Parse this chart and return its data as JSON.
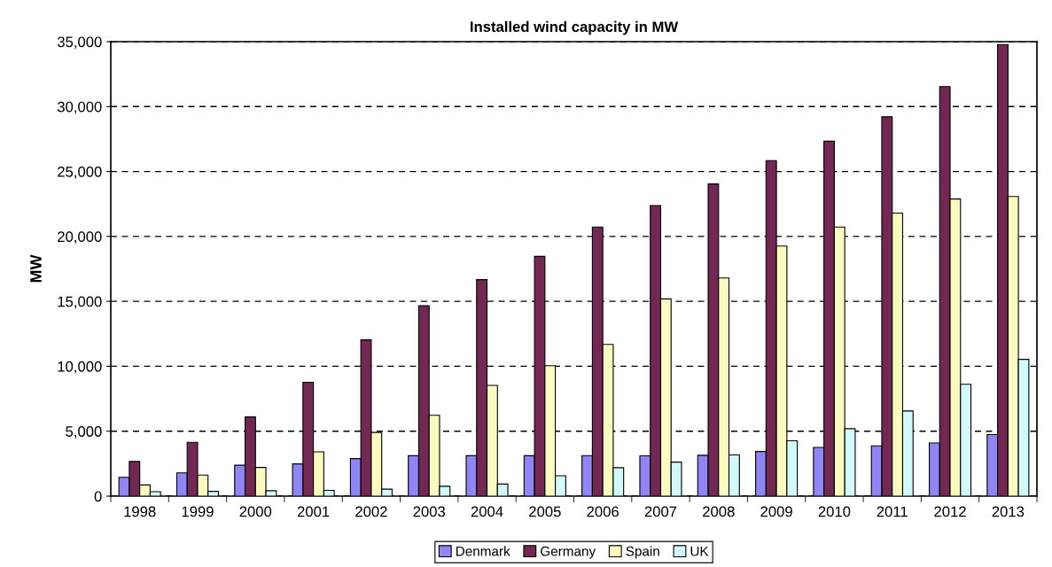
{
  "chart_data": {
    "type": "bar",
    "title": "Installed wind capacity in MW",
    "ylabel": "MW",
    "categories": [
      "1998",
      "1999",
      "2000",
      "2001",
      "2002",
      "2003",
      "2004",
      "2005",
      "2006",
      "2007",
      "2008",
      "2009",
      "2010",
      "2011",
      "2012",
      "2013"
    ],
    "series": [
      {
        "name": "Denmark",
        "color": "#8f85f5",
        "values": [
          1450,
          1790,
          2380,
          2480,
          2890,
          3110,
          3110,
          3110,
          3120,
          3100,
          3150,
          3440,
          3750,
          3870,
          4090,
          4740
        ]
      },
      {
        "name": "Germany",
        "color": "#722852",
        "values": [
          2670,
          4140,
          6100,
          8770,
          12030,
          14660,
          16670,
          18460,
          20720,
          22380,
          24040,
          25840,
          27330,
          29210,
          31540,
          34780
        ]
      },
      {
        "name": "Spain",
        "color": "#fbfbc0",
        "values": [
          860,
          1620,
          2210,
          3410,
          4900,
          6230,
          8530,
          10050,
          11680,
          15190,
          16800,
          19260,
          20720,
          21800,
          22880,
          23080
        ]
      },
      {
        "name": "UK",
        "color": "#d2fafa",
        "values": [
          340,
          370,
          420,
          440,
          540,
          760,
          930,
          1570,
          2190,
          2620,
          3170,
          4260,
          5190,
          6560,
          8610,
          10530
        ]
      }
    ],
    "ylim": [
      0,
      35000
    ],
    "yticks": [
      {
        "value": 0,
        "label": "0"
      },
      {
        "value": 5000,
        "label": "5,000"
      },
      {
        "value": 10000,
        "label": "10,000"
      },
      {
        "value": 15000,
        "label": "15,000"
      },
      {
        "value": 20000,
        "label": "20,000"
      },
      {
        "value": 25000,
        "label": "25,000"
      },
      {
        "value": 30000,
        "label": "30,000"
      },
      {
        "value": 35000,
        "label": "35,000"
      }
    ],
    "grid": "y",
    "legend": "bottom"
  }
}
